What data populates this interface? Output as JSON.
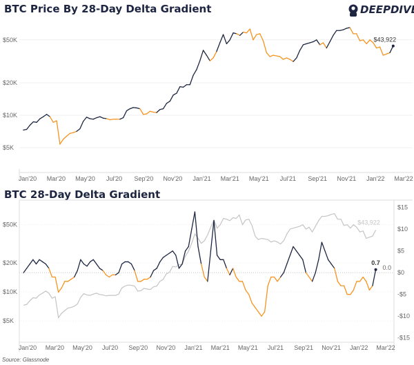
{
  "logo_text": "DEEPDIVE",
  "source": "Source: Glassnode",
  "colors": {
    "positive": "#1d2540",
    "negative": "#f7931e",
    "price_gray": "#c4c4c4",
    "grid": "#ececec"
  },
  "chart_data": [
    {
      "type": "line",
      "title": "BTC Price By 28-Day Delta Gradient",
      "y_scale": "log",
      "ylim": [
        2950,
        81000
      ],
      "yticks": [
        {
          "v": 5000,
          "label": "$5K"
        },
        {
          "v": 10000,
          "label": "$10K"
        },
        {
          "v": 20000,
          "label": "$20K"
        },
        {
          "v": 50000,
          "label": "$50K"
        }
      ],
      "xlim": [
        "2020-01-01",
        "2022-03-01"
      ],
      "xticks": [
        "Jan'20",
        "Mar'20",
        "May'20",
        "Jul'20",
        "Sep'20",
        "Nov'20",
        "Jan'21",
        "Mar'21",
        "May'21",
        "Jul'21",
        "Sep'21",
        "Nov'21",
        "Jan'22",
        "Mar'22"
      ],
      "color_rule": "navy when gradient > 0, orange when gradient < 0",
      "last_label": "$43,922",
      "grid": true
    },
    {
      "type": "line",
      "title": "BTC 28-Day Delta Gradient",
      "y_scale_left": "log",
      "ylim_left": [
        3000,
        90000
      ],
      "yticks_left": [
        {
          "v": 5000,
          "label": "$5K"
        },
        {
          "v": 10000,
          "label": "$10K"
        },
        {
          "v": 20000,
          "label": "$20K"
        },
        {
          "v": 50000,
          "label": "$50K"
        }
      ],
      "ylim_right": [
        -16,
        16.7
      ],
      "yticks_right": [
        {
          "v": 15,
          "label": "$15"
        },
        {
          "v": 10,
          "label": "$10"
        },
        {
          "v": 5,
          "label": "$5"
        },
        {
          "v": 0,
          "label": "$0"
        },
        {
          "v": -5,
          "label": "-$5"
        },
        {
          "v": -10,
          "label": "-$10"
        },
        {
          "v": -15,
          "label": "-$15"
        }
      ],
      "xlim": [
        "2020-01-01",
        "2022-03-01"
      ],
      "xticks": [
        "Jan'20",
        "Mar'20",
        "May'20",
        "Jul'20",
        "Sep'20",
        "Nov'20",
        "Jan'21",
        "Mar'21",
        "May'21",
        "Jul'21",
        "Sep'21",
        "Nov'21",
        "Jan'22",
        "Mar'22"
      ],
      "zero_label": "0.0",
      "last_gradient_label": "0.7",
      "last_price_label": "$43,922",
      "grid": true
    }
  ],
  "series": {
    "dates": [
      "2019-12-23",
      "2019-12-30",
      "2020-01-06",
      "2020-01-13",
      "2020-01-20",
      "2020-01-27",
      "2020-02-03",
      "2020-02-10",
      "2020-02-17",
      "2020-02-24",
      "2020-03-02",
      "2020-03-09",
      "2020-03-16",
      "2020-03-23",
      "2020-03-30",
      "2020-04-06",
      "2020-04-13",
      "2020-04-20",
      "2020-04-27",
      "2020-05-04",
      "2020-05-11",
      "2020-05-18",
      "2020-05-25",
      "2020-06-01",
      "2020-06-08",
      "2020-06-15",
      "2020-06-22",
      "2020-06-29",
      "2020-07-06",
      "2020-07-13",
      "2020-07-20",
      "2020-07-27",
      "2020-08-03",
      "2020-08-10",
      "2020-08-17",
      "2020-08-24",
      "2020-08-31",
      "2020-09-07",
      "2020-09-14",
      "2020-09-21",
      "2020-09-28",
      "2020-10-05",
      "2020-10-12",
      "2020-10-19",
      "2020-10-26",
      "2020-11-02",
      "2020-11-09",
      "2020-11-16",
      "2020-11-23",
      "2020-11-30",
      "2020-12-07",
      "2020-12-14",
      "2020-12-21",
      "2020-12-28",
      "2021-01-04",
      "2021-01-11",
      "2021-01-18",
      "2021-01-25",
      "2021-02-01",
      "2021-02-08",
      "2021-02-15",
      "2021-02-22",
      "2021-03-01",
      "2021-03-08",
      "2021-03-15",
      "2021-03-22",
      "2021-03-29",
      "2021-04-05",
      "2021-04-12",
      "2021-04-19",
      "2021-04-26",
      "2021-05-03",
      "2021-05-10",
      "2021-05-17",
      "2021-05-24",
      "2021-05-31",
      "2021-06-07",
      "2021-06-14",
      "2021-06-21",
      "2021-06-28",
      "2021-07-05",
      "2021-07-12",
      "2021-07-19",
      "2021-07-26",
      "2021-08-02",
      "2021-08-09",
      "2021-08-16",
      "2021-08-23",
      "2021-08-30",
      "2021-09-06",
      "2021-09-13",
      "2021-09-20",
      "2021-09-27",
      "2021-10-04",
      "2021-10-11",
      "2021-10-18",
      "2021-10-25",
      "2021-11-01",
      "2021-11-08",
      "2021-11-15",
      "2021-11-22",
      "2021-11-29",
      "2021-12-06",
      "2021-12-13",
      "2021-12-20",
      "2021-12-27",
      "2022-01-03",
      "2022-01-10",
      "2022-01-17",
      "2022-01-24",
      "2022-01-31",
      "2022-02-07"
    ],
    "price": [
      7300,
      7400,
      8100,
      8700,
      8600,
      9300,
      9700,
      10200,
      9700,
      8600,
      8900,
      5400,
      6000,
      6400,
      6800,
      6900,
      7100,
      7500,
      8800,
      9600,
      9300,
      9200,
      9500,
      9700,
      9400,
      9300,
      9100,
      9200,
      9200,
      9200,
      9500,
      11000,
      11500,
      11800,
      11700,
      11500,
      10200,
      10300,
      10900,
      10700,
      10600,
      11300,
      11500,
      12900,
      13500,
      15400,
      16000,
      18400,
      18200,
      19200,
      19200,
      23500,
      26500,
      32000,
      40000,
      36000,
      32000,
      34000,
      39000,
      47000,
      56000,
      46000,
      50000,
      58000,
      57000,
      55000,
      59000,
      58000,
      63000,
      50000,
      56000,
      57000,
      49000,
      38000,
      35000,
      36000,
      35500,
      35000,
      33000,
      34000,
      33000,
      31500,
      34000,
      40000,
      45000,
      46000,
      47000,
      48000,
      50000,
      45000,
      47000,
      42000,
      48000,
      55000,
      61000,
      61000,
      62000,
      64000,
      65000,
      57000,
      57000,
      49000,
      50000,
      46000,
      50000,
      47000,
      42000,
      43000,
      36000,
      37000,
      38000,
      43922
    ],
    "gradient": [
      0,
      1,
      2,
      3,
      2,
      3,
      2.5,
      2,
      1,
      -1,
      -1,
      -4.5,
      -3.5,
      -2,
      -2,
      -1.5,
      -1,
      0.5,
      3,
      2,
      1.5,
      2.5,
      3,
      2,
      1,
      0.5,
      -0.5,
      -1,
      -0.5,
      -0.5,
      0,
      2,
      2.5,
      2.5,
      2,
      0.5,
      -2,
      -2,
      -1.5,
      -1.5,
      -1,
      0.5,
      1,
      2.5,
      3.5,
      4,
      4.5,
      5,
      4,
      1,
      2,
      5,
      6,
      10,
      14,
      6,
      2,
      -1,
      -2,
      5,
      12,
      4,
      3,
      3,
      1,
      -0.5,
      1,
      -1,
      -2,
      -2,
      -4,
      -5,
      -7,
      -8,
      -9,
      -10,
      -9,
      -3,
      -1,
      -1,
      -2,
      -1,
      0,
      2,
      4,
      6,
      5,
      4,
      3,
      0,
      -1,
      -2,
      0,
      3,
      7,
      5,
      3,
      2,
      1,
      -2,
      -3,
      -3,
      -5,
      -5,
      -4,
      -2,
      -2,
      -1,
      -2,
      -4,
      -3,
      0.7
    ]
  }
}
